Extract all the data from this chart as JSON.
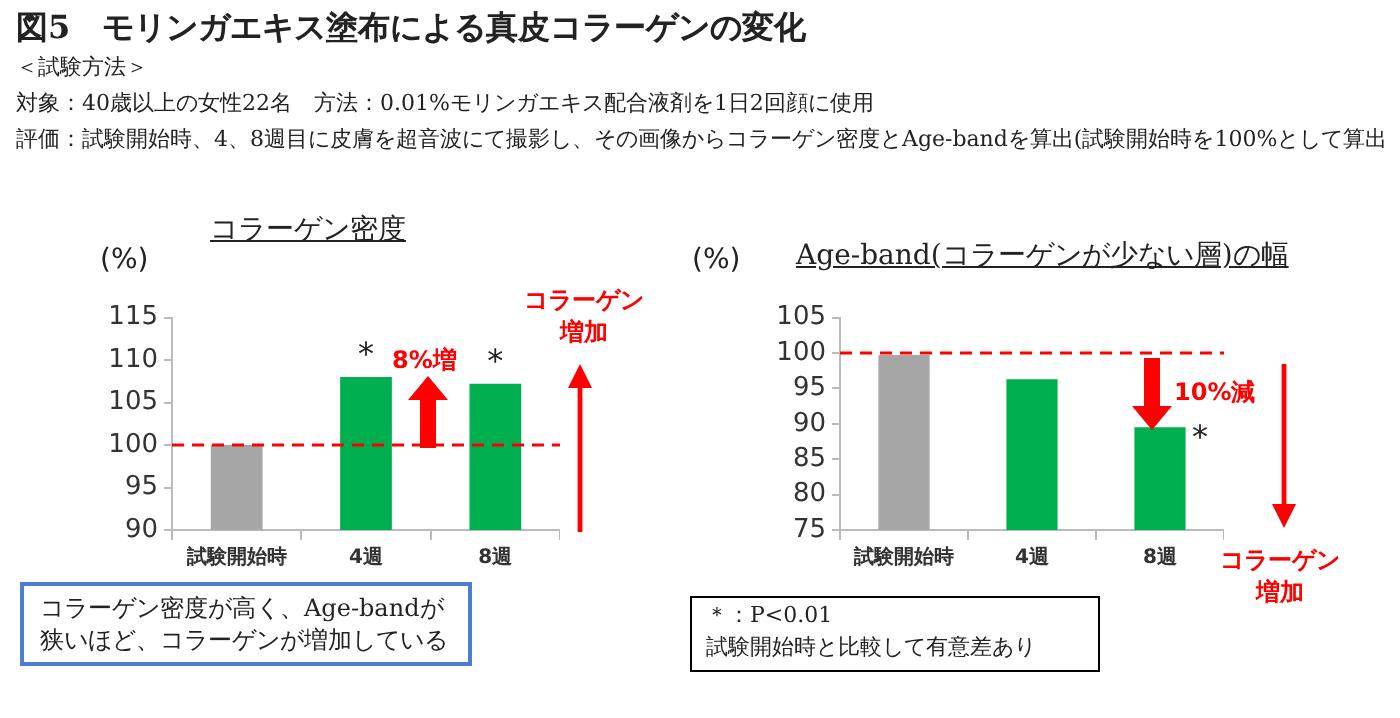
{
  "chart_data": [
    {
      "type": "other",
      "title": "図5　モリンガエキス塗布による真皮コラーゲンの変化",
      "annotations": [
        "＜試験方法＞",
        "対象：40歳以上の女性22名　方法：0.01%モリンガエキス配合液剤を1日2回顔に使用",
        "評価：試験開始時、4、8週目に皮膚を超音波にて撮影し、その画像からコラーゲン密度とAge-bandを算出(試験開始時を100%として算出"
      ]
    },
    {
      "type": "bar",
      "title": "コラーゲン密度",
      "ylabel": "(%)",
      "categories": [
        "試験開始時",
        "4週",
        "8週"
      ],
      "values": [
        100,
        108,
        107.2
      ],
      "colors": [
        "#a6a6a6",
        "#00b050",
        "#00b050"
      ],
      "ylim": [
        90,
        115
      ],
      "yticks": [
        90,
        95,
        100,
        105,
        110,
        115
      ],
      "grid": false,
      "legend": false,
      "ref_lines": [
        {
          "axis": "y",
          "value": 100,
          "color": "#ff0000",
          "line_style": "dashed"
        }
      ],
      "annotations": [
        "8%増",
        "コラーゲン増加",
        {
          "text": "*",
          "x": "4週",
          "y": 108
        },
        {
          "text": "*",
          "x": "8週",
          "y": 107.2
        },
        "コラーゲン密度が高く、Age-bandが狭いほど、コラーゲンが増加している"
      ]
    },
    {
      "type": "bar",
      "title": "Age-band(コラーゲンが少ない層)の幅",
      "ylabel": "(%)",
      "categories": [
        "試験開始時",
        "4週",
        "8週"
      ],
      "values": [
        99.7,
        96.3,
        89.5
      ],
      "colors": [
        "#a6a6a6",
        "#00b050",
        "#00b050"
      ],
      "ylim": [
        75,
        105
      ],
      "yticks": [
        75,
        80,
        85,
        90,
        95,
        100,
        105
      ],
      "grid": false,
      "legend": false,
      "ref_lines": [
        {
          "axis": "y",
          "value": 100,
          "color": "#ff0000",
          "line_style": "dashed"
        }
      ],
      "annotations": [
        "10%減",
        "コラーゲン増加",
        {
          "text": "*",
          "x": "8週",
          "y": 89.5
        },
        "＊：P<0.01",
        "試験開始時と比較して有意差あり"
      ]
    }
  ]
}
